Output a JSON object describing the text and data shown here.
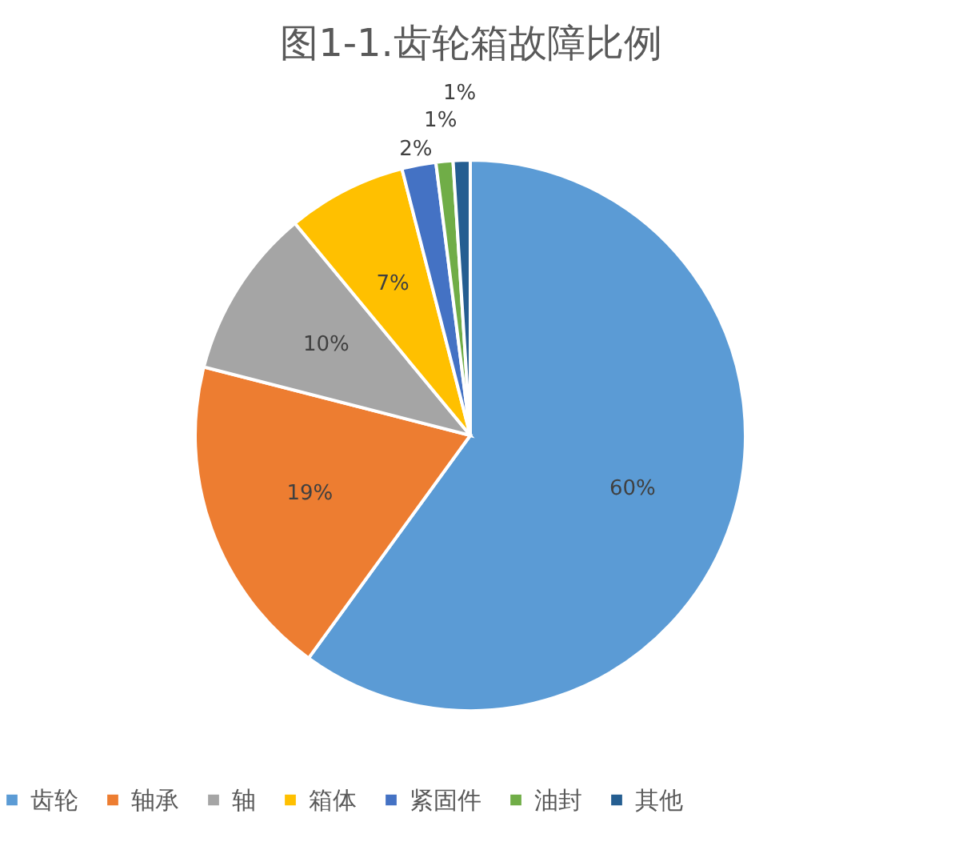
{
  "chart_data": {
    "type": "pie",
    "title": "图1-1.齿轮箱故障比例",
    "categories": [
      "齿轮",
      "轴承",
      "轴",
      "箱体",
      "紧固件",
      "油封",
      "其他"
    ],
    "values": [
      60,
      19,
      10,
      7,
      2,
      1,
      1
    ],
    "colors": [
      "#5b9bd5",
      "#ed7d31",
      "#a5a5a5",
      "#ffc000",
      "#4472c4",
      "#70ad47",
      "#255e91"
    ],
    "value_labels": [
      "60%",
      "19%",
      "10%",
      "7%",
      "2%",
      "1%",
      "1%"
    ],
    "legend": "bottom"
  }
}
